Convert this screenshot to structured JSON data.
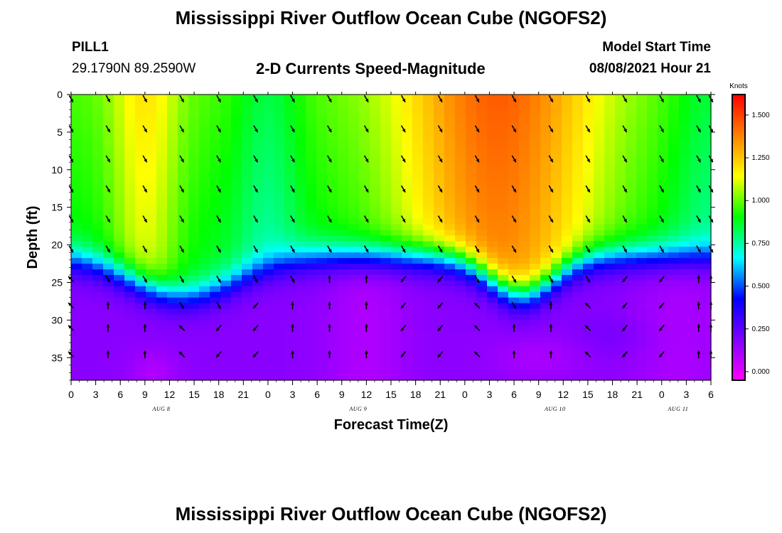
{
  "header": {
    "title": "Mississippi River Outflow Ocean Cube (NGOFS2)",
    "station": "PILL1",
    "coordinates": "29.1790N  89.2590W",
    "subtitle": "2-D Currents Speed-Magnitude",
    "model_start_label": "Model Start Time",
    "model_start_time": "08/08/2021 Hour 21"
  },
  "footer": {
    "title": "Mississippi River Outflow Ocean Cube (NGOFS2)"
  },
  "chart_data": {
    "type": "heatmap",
    "xlabel": "Forecast Time(Z)",
    "ylabel": "Depth (ft)",
    "x_range_hours": [
      0,
      78
    ],
    "y_range": [
      0,
      38
    ],
    "x_tick_labels": [
      "0",
      "3",
      "6",
      "9",
      "12",
      "15",
      "18",
      "21",
      "0",
      "3",
      "6",
      "9",
      "12",
      "15",
      "18",
      "21",
      "0",
      "3",
      "6",
      "9",
      "12",
      "15",
      "18",
      "21",
      "0",
      "3",
      "6"
    ],
    "y_ticks": [
      0,
      5,
      10,
      15,
      20,
      25,
      30,
      35
    ],
    "day_labels": [
      {
        "text": "AUG  8",
        "hour": 11
      },
      {
        "text": "AUG  9",
        "hour": 35
      },
      {
        "text": "AUG  10",
        "hour": 59
      },
      {
        "text": "AUG  11",
        "hour": 74
      }
    ],
    "colorbar": {
      "label": "Knots",
      "min": -0.05,
      "max": 1.62,
      "ticks": [
        "0.000",
        "0.250",
        "0.500",
        "0.750",
        "1.000",
        "1.250",
        "1.500"
      ],
      "tick_values": [
        0,
        0.25,
        0.5,
        0.75,
        1.0,
        1.25,
        1.5
      ],
      "colors": [
        "#ff00ff",
        "#8000ff",
        "#0000ff",
        "#00ffff",
        "#00ff00",
        "#ffff00",
        "#ff8000",
        "#ff0000"
      ]
    },
    "grid": false,
    "legend": "right",
    "arrow_hours": [
      0,
      4.5,
      9,
      13.5,
      18,
      22.5,
      27,
      31.5,
      36,
      40.5,
      45,
      49.5,
      54,
      58.5,
      63,
      67.5,
      72,
      76.5,
      78
    ],
    "arrow_depths": [
      0,
      4,
      8,
      12,
      16,
      20,
      24,
      27.5,
      30.5,
      34
    ]
  }
}
